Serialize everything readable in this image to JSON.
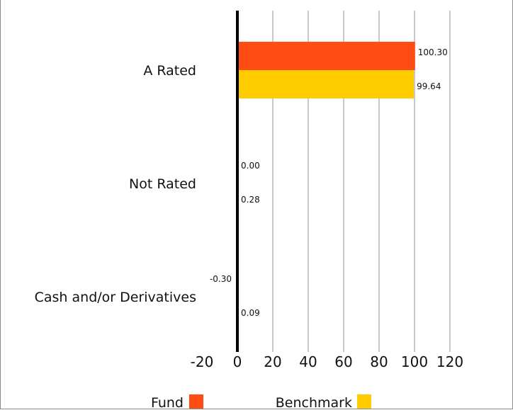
{
  "chart_data": {
    "type": "bar",
    "orientation": "horizontal",
    "categories": [
      "A Rated",
      "Not Rated",
      "Cash and/or Derivatives"
    ],
    "series": [
      {
        "name": "Fund",
        "color": "#ff4b14",
        "values": [
          100.3,
          0.0,
          -0.3
        ],
        "value_labels": [
          "100.30",
          "0.00",
          "-0.30"
        ]
      },
      {
        "name": "Benchmark",
        "color": "#ffcc00",
        "values": [
          99.64,
          0.28,
          0.09
        ],
        "value_labels": [
          "99.64",
          "0.28",
          "0.09"
        ]
      }
    ],
    "xlim": [
      -20,
      120
    ],
    "xticks": [
      -20,
      0,
      20,
      40,
      60,
      80,
      100,
      120
    ],
    "xtick_labels": [
      "-20",
      "0",
      "20",
      "40",
      "60",
      "80",
      "100",
      "120"
    ],
    "grid": "vertical",
    "legend_position": "bottom",
    "title": "",
    "xlabel": "",
    "ylabel": ""
  }
}
